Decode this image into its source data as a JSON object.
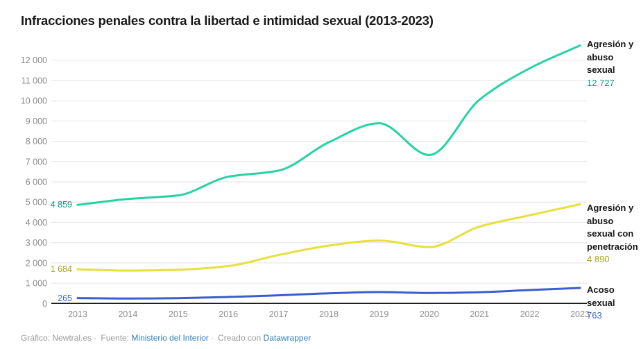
{
  "title": "Infracciones penales contra la libertad e intimidad sexual (2013-2023)",
  "chart_data": {
    "type": "line",
    "x": [
      2013,
      2014,
      2015,
      2016,
      2017,
      2018,
      2019,
      2020,
      2021,
      2022,
      2023
    ],
    "x_labels": [
      "2013",
      "2014",
      "2015",
      "2016",
      "2017",
      "2018",
      "2019",
      "2020",
      "2021",
      "2022",
      "2023"
    ],
    "ylim": [
      0,
      12727
    ],
    "yticks": [
      0,
      1000,
      2000,
      3000,
      4000,
      5000,
      6000,
      7000,
      8000,
      9000,
      10000,
      11000,
      12000
    ],
    "ytick_labels": [
      "0",
      "1 000",
      "2 000",
      "3 000",
      "4 000",
      "5 000",
      "6 000",
      "7 000",
      "8 000",
      "9 000",
      "10 000",
      "11 000",
      "12 000"
    ],
    "grid": "horizontal-only",
    "legend_position": "right-edge-annotations",
    "series": [
      {
        "name": "Agresión y abuso sexual",
        "color": "#25d3a4",
        "label_color": "#12967c",
        "values": [
          4859,
          5150,
          5330,
          6250,
          6550,
          7950,
          8890,
          7320,
          10050,
          11600,
          12727
        ],
        "start_label": "4 859",
        "end_label": "12 727"
      },
      {
        "name": "Agresión y abuso sexual con penetración",
        "color": "#e7df3c",
        "label_color": "#a9a41b",
        "values": [
          1684,
          1620,
          1660,
          1845,
          2390,
          2850,
          3100,
          2780,
          3790,
          4350,
          4890
        ],
        "start_label": "1 684",
        "end_label": "4 890"
      },
      {
        "name": "Acoso sexual",
        "color": "#3a5dce",
        "label_color": "#4064d2",
        "values": [
          265,
          240,
          260,
          320,
          400,
          500,
          560,
          515,
          555,
          660,
          763
        ],
        "start_label": "265",
        "end_label": "763"
      }
    ],
    "axis_color": "#161616",
    "grid_color": "#e3e3e3"
  },
  "footer": {
    "graphic_label": "Gráfico: Newtral.es",
    "separator": "·",
    "source_label": "Fuente:",
    "source_link": "Ministerio del Interior",
    "created_label": "Creado con",
    "created_link": "Datawrapper"
  }
}
